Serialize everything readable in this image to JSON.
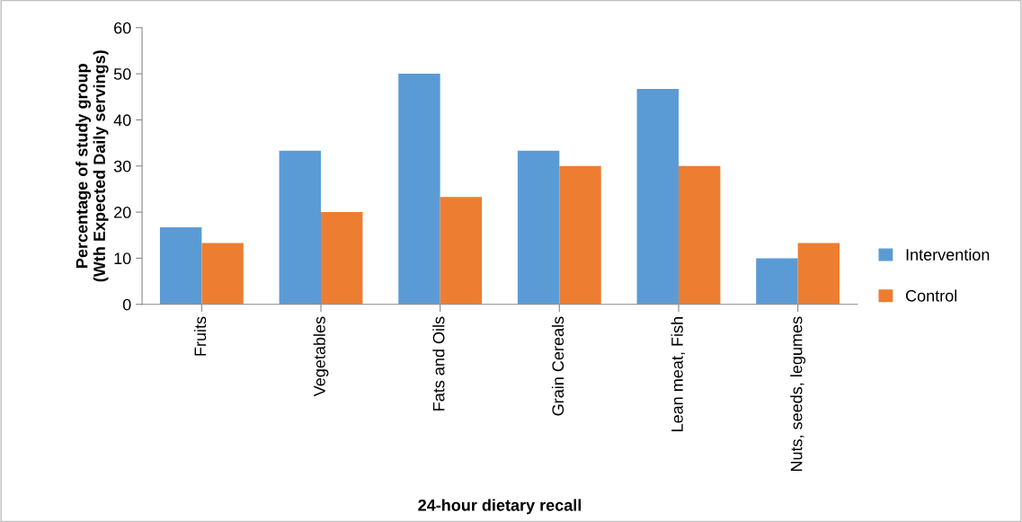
{
  "chart_data": {
    "type": "bar",
    "xlabel": "24-hour dietary recall",
    "ylabel": "Percentage of study group\n(Wth Expected Daily servings)",
    "categories": [
      "Fruits",
      "Vegetables",
      "Fats and Oils",
      "Grain Cereals",
      "Lean meat, Fish",
      "Nuts, seeds, legumes"
    ],
    "series": [
      {
        "name": "Intervention",
        "color": "#5b9bd5",
        "values": [
          16.7,
          33.3,
          50,
          33.3,
          46.7,
          10
        ]
      },
      {
        "name": "Control",
        "color": "#ed7d31",
        "values": [
          13.3,
          20,
          23.3,
          30,
          30,
          13.3
        ]
      }
    ],
    "ylim": [
      0,
      60
    ],
    "yticks": [
      0,
      10,
      20,
      30,
      40,
      50,
      60
    ],
    "grid": false,
    "legend": "right"
  }
}
